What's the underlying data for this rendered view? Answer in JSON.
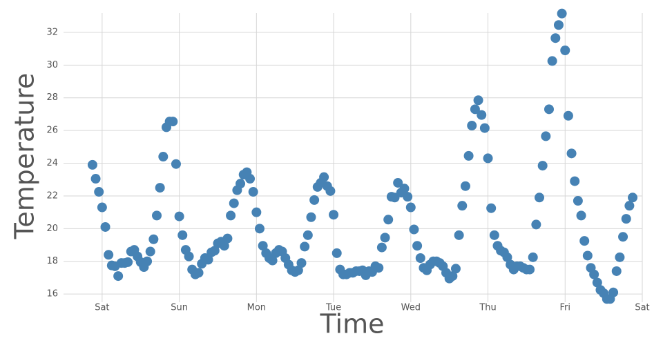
{
  "chart_data": {
    "type": "scatter",
    "x_label": "Time",
    "y_label": "Temperature",
    "color": "#4682b4",
    "grid": true,
    "xlim": [
      -12,
      168
    ],
    "ylim": [
      15.5,
      33.6
    ],
    "xticks": [
      {
        "value": 0,
        "label": "Sat"
      },
      {
        "value": 24,
        "label": "Sun"
      },
      {
        "value": 48,
        "label": "Mon"
      },
      {
        "value": 72,
        "label": "Tue"
      },
      {
        "value": 96,
        "label": "Wed"
      },
      {
        "value": 120,
        "label": "Thu"
      },
      {
        "value": 144,
        "label": "Fri"
      },
      {
        "value": 168,
        "label": "Sat"
      }
    ],
    "yticks": [
      16,
      18,
      20,
      22,
      24,
      26,
      28,
      30,
      32
    ],
    "x": [
      -3,
      -2,
      -1,
      0,
      1,
      2,
      3,
      4,
      5,
      6,
      7,
      8,
      9,
      10,
      11,
      12,
      13,
      14,
      15,
      16,
      17,
      18,
      19,
      20,
      21,
      22,
      23,
      24,
      25,
      26,
      27,
      28,
      29,
      30,
      31,
      32,
      33,
      34,
      35,
      36,
      37,
      38,
      39,
      40,
      41,
      42,
      43,
      44,
      45,
      46,
      47,
      48,
      49,
      50,
      51,
      52,
      53,
      54,
      55,
      56,
      57,
      58,
      59,
      60,
      61,
      62,
      63,
      64,
      65,
      66,
      67,
      68,
      69,
      70,
      71,
      72,
      73,
      74,
      75,
      76,
      77,
      78,
      79,
      80,
      81,
      82,
      83,
      84,
      85,
      86,
      87,
      88,
      89,
      90,
      91,
      92,
      93,
      94,
      95,
      96,
      97,
      98,
      99,
      100,
      101,
      102,
      103,
      104,
      105,
      106,
      107,
      108,
      109,
      110,
      111,
      112,
      113,
      114,
      115,
      116,
      117,
      118,
      119,
      120,
      121,
      122,
      123,
      124,
      125,
      126,
      127,
      128,
      129,
      130,
      131,
      132,
      133,
      134,
      135,
      136,
      137,
      138,
      139,
      140,
      141,
      142,
      143,
      144,
      145,
      146,
      147,
      148,
      149,
      150,
      151,
      152,
      153,
      154,
      155,
      156,
      157,
      158,
      159,
      160,
      161,
      162,
      163,
      164,
      165
    ],
    "values": [
      23.9,
      23.05,
      22.25,
      21.3,
      20.1,
      18.4,
      17.75,
      17.7,
      17.1,
      17.9,
      17.9,
      17.95,
      18.6,
      18.7,
      18.3,
      17.95,
      17.65,
      18.0,
      18.6,
      19.35,
      20.8,
      22.5,
      24.4,
      26.2,
      26.55,
      26.55,
      23.95,
      20.75,
      19.6,
      18.7,
      18.3,
      17.5,
      17.2,
      17.3,
      17.85,
      18.2,
      18.1,
      18.55,
      18.65,
      19.1,
      19.2,
      18.95,
      19.4,
      20.8,
      21.55,
      22.35,
      22.75,
      23.3,
      23.45,
      23.05,
      22.25,
      21.0,
      20.0,
      18.95,
      18.5,
      18.2,
      18.05,
      18.5,
      18.7,
      18.6,
      18.2,
      17.8,
      17.45,
      17.35,
      17.45,
      17.9,
      18.9,
      19.6,
      20.7,
      21.75,
      22.55,
      22.8,
      23.15,
      22.6,
      22.3,
      20.85,
      18.5,
      17.5,
      17.2,
      17.2,
      17.3,
      17.3,
      17.4,
      17.4,
      17.45,
      17.15,
      17.4,
      17.35,
      17.7,
      17.6,
      18.85,
      19.45,
      20.55,
      21.95,
      21.9,
      22.8,
      22.2,
      22.45,
      21.95,
      21.3,
      19.95,
      18.95,
      18.2,
      17.6,
      17.45,
      17.8,
      18.0,
      18.0,
      17.9,
      17.7,
      17.3,
      16.95,
      17.1,
      17.55,
      19.6,
      21.4,
      22.6,
      24.45,
      26.3,
      27.3,
      27.85,
      26.95,
      26.15,
      24.3,
      21.25,
      19.6,
      18.95,
      18.65,
      18.55,
      18.25,
      17.8,
      17.5,
      17.7,
      17.7,
      17.6,
      17.5,
      17.5,
      18.25,
      20.25,
      21.9,
      23.85,
      25.65,
      27.3,
      30.25,
      31.65,
      32.45,
      33.15,
      30.9,
      26.9,
      24.6,
      22.9,
      21.7,
      20.8,
      19.25,
      18.35,
      17.6,
      17.2,
      16.7,
      16.25,
      16.05,
      15.7,
      15.7,
      16.1,
      17.4,
      18.25,
      19.5,
      20.6,
      21.4,
      21.9
    ]
  }
}
